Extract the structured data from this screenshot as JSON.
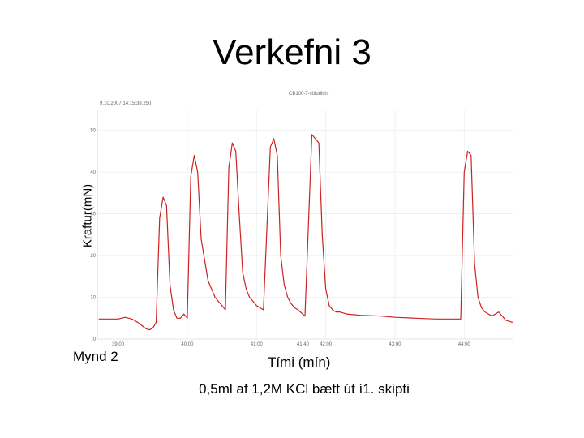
{
  "slide": {
    "title": "Verkefni 3",
    "figure_caption": "Mynd 2",
    "note": "0,5ml af 1,2M KCl bætt út í1. skipti"
  },
  "chart_data": {
    "type": "line",
    "title": "Verkefni 3",
    "xlabel": "Tími (mín)",
    "ylabel": "Kraftur(mN)",
    "header_timestamp": "9.10.2007 14:15:38,250",
    "header_title": "CB100-7-sölurlicht",
    "ylim": [
      0,
      55
    ],
    "xlim": [
      38.7,
      44.7
    ],
    "y_ticks": [
      {
        "value": 0,
        "label": "0"
      },
      {
        "value": 10,
        "label": "10"
      },
      {
        "value": 20,
        "label": "20"
      },
      {
        "value": 30,
        "label": "30"
      },
      {
        "value": 40,
        "label": "40"
      },
      {
        "value": 50,
        "label": "50"
      }
    ],
    "x_ticks": [
      {
        "value": 39.0,
        "label": "39:00"
      },
      {
        "value": 40.0,
        "label": "40:00"
      },
      {
        "value": 41.0,
        "label": "41:00"
      },
      {
        "value": 41.67,
        "label": "41:40"
      },
      {
        "value": 42.0,
        "label": "42:00"
      },
      {
        "value": 43.0,
        "label": "43:00"
      },
      {
        "value": 44.0,
        "label": "44:00"
      }
    ],
    "grid": true,
    "series": [
      {
        "color": "#cc2222",
        "x": [
          38.72,
          39.0,
          39.1,
          39.2,
          39.3,
          39.4,
          39.45,
          39.5,
          39.55,
          39.6,
          39.65,
          39.7,
          39.75,
          39.8,
          39.85,
          39.9,
          39.95,
          40.0,
          40.05,
          40.1,
          40.15,
          40.2,
          40.3,
          40.4,
          40.5,
          40.55,
          40.6,
          40.65,
          40.7,
          40.75,
          40.8,
          40.85,
          40.9,
          41.0,
          41.1,
          41.2,
          41.25,
          41.3,
          41.35,
          41.4,
          41.45,
          41.5,
          41.55,
          41.6,
          41.7,
          41.8,
          41.9,
          41.95,
          42.0,
          42.05,
          42.1,
          42.15,
          42.2,
          42.3,
          42.5,
          42.8,
          43.0,
          43.3,
          43.6,
          43.8,
          43.95,
          44.0,
          44.05,
          44.1,
          44.15,
          44.2,
          44.25,
          44.3,
          44.4,
          44.5,
          44.6,
          44.7
        ],
        "y": [
          4.8,
          4.8,
          5.2,
          4.8,
          3.8,
          2.5,
          2.2,
          2.6,
          4.0,
          29.0,
          34.0,
          32.0,
          13.0,
          7.0,
          5.0,
          5.0,
          6.0,
          5.0,
          39.0,
          44.0,
          40.0,
          24.0,
          14.0,
          10.0,
          8.0,
          7.0,
          41.0,
          47.0,
          45.0,
          30.0,
          16.0,
          12.0,
          10.0,
          8.0,
          7.0,
          46.0,
          48.0,
          44.0,
          20.0,
          13.0,
          10.0,
          8.5,
          7.5,
          7.0,
          5.5,
          49.0,
          47.0,
          25.0,
          12.0,
          8.0,
          7.0,
          6.5,
          6.5,
          6.0,
          5.7,
          5.5,
          5.2,
          5.0,
          4.8,
          4.8,
          4.8,
          40.0,
          45.0,
          44.0,
          18.0,
          10.0,
          7.5,
          6.5,
          5.5,
          6.5,
          4.5,
          4.0
        ]
      }
    ]
  }
}
